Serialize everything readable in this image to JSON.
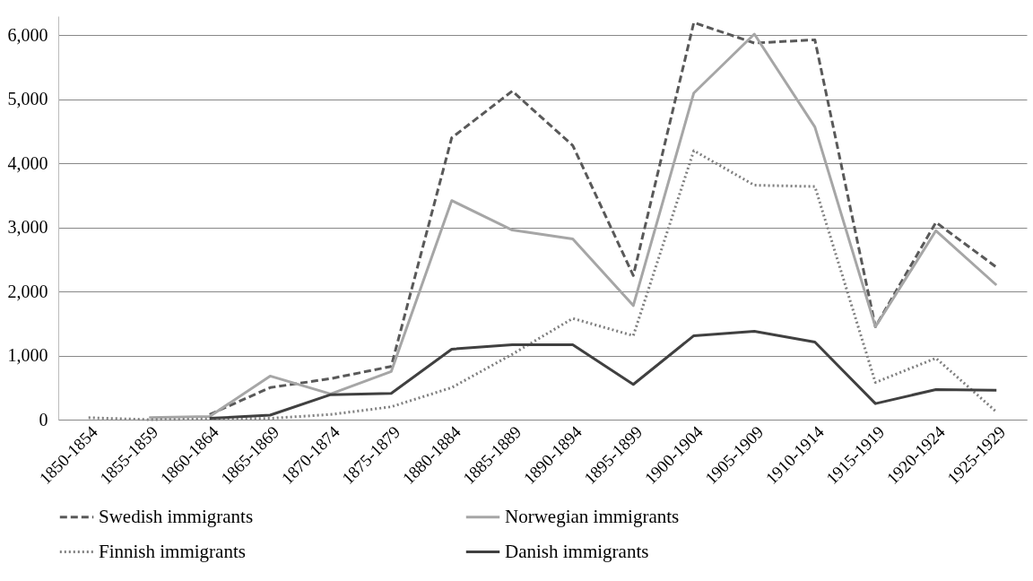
{
  "chart_data": {
    "type": "line",
    "categories": [
      "1850-1854",
      "1855-1859",
      "1860-1864",
      "1865-1869",
      "1870-1874",
      "1875-1879",
      "1880-1884",
      "1885-1889",
      "1890-1894",
      "1895-1899",
      "1900-1904",
      "1905-1909",
      "1910-1914",
      "1915-1919",
      "1920-1924",
      "1925-1929"
    ],
    "series": [
      {
        "name": "Swedish immigrants",
        "color": "#595959",
        "line_style": "dashed",
        "values": [
          null,
          null,
          80,
          500,
          640,
          830,
          4400,
          5130,
          4280,
          2250,
          6200,
          5880,
          5930,
          1450,
          3080,
          2380
        ]
      },
      {
        "name": "Norwegian immigrants",
        "color": "#a6a6a6",
        "line_style": "solid",
        "values": [
          null,
          30,
          50,
          680,
          400,
          750,
          3420,
          2960,
          2820,
          1780,
          5100,
          6020,
          4570,
          1450,
          2950,
          2100
        ]
      },
      {
        "name": "Finnish immigrants",
        "color": "#7f7f7f",
        "line_style": "dotted",
        "values": [
          30,
          0,
          10,
          20,
          80,
          200,
          500,
          1020,
          1580,
          1310,
          4200,
          3660,
          3640,
          580,
          960,
          120
        ]
      },
      {
        "name": "Danish immigrants",
        "color": "#404040",
        "line_style": "solid",
        "values": [
          null,
          null,
          20,
          70,
          390,
          410,
          1100,
          1170,
          1170,
          550,
          1310,
          1380,
          1210,
          250,
          470,
          460
        ]
      }
    ],
    "ylim": [
      0,
      6300
    ],
    "yticks": [
      0,
      {
        "value": 1000,
        "label": "1,000"
      },
      {
        "value": 2000,
        "label": "2,000"
      },
      {
        "value": 3000,
        "label": "3,000"
      },
      {
        "value": 4000,
        "label": "4,000"
      },
      {
        "value": 5000,
        "label": "5,000"
      },
      {
        "value": 6000,
        "label": "6,000"
      }
    ],
    "grid": "y",
    "legend": "bottom"
  }
}
